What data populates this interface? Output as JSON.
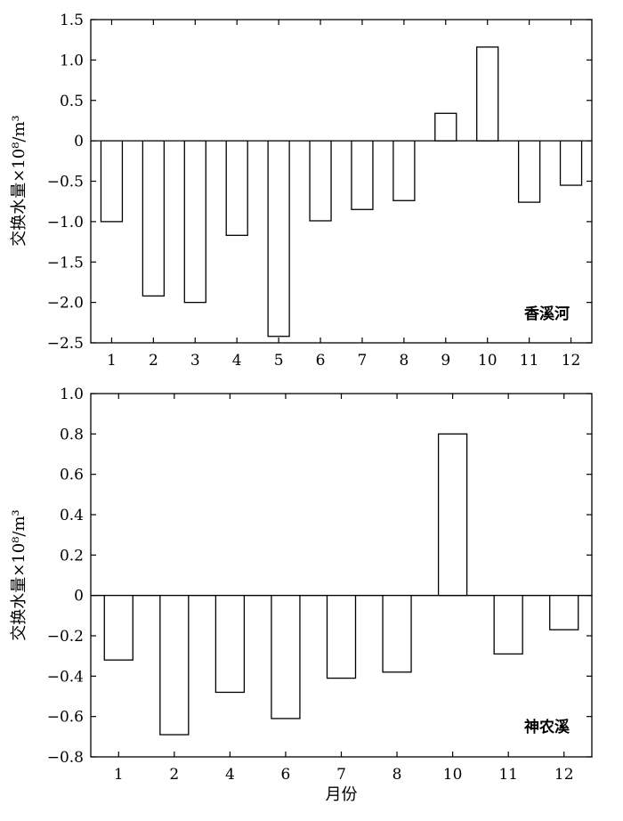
{
  "chart_data": [
    {
      "type": "bar",
      "annotation": "香溪河",
      "ylabel": "交换水量×10⁸/m³",
      "xlabel": "",
      "categories": [
        "1",
        "2",
        "3",
        "4",
        "5",
        "6",
        "7",
        "8",
        "9",
        "10",
        "11",
        "12"
      ],
      "values": [
        -1.0,
        -1.92,
        -2.0,
        -1.17,
        -2.42,
        -0.99,
        -0.85,
        -0.74,
        0.34,
        1.16,
        -0.76,
        -0.55
      ],
      "ylim": [
        -2.5,
        1.5
      ],
      "yticks": [
        1.5,
        1.0,
        0.5,
        0,
        -0.5,
        -1.0,
        -1.5,
        -2.0,
        -2.5
      ],
      "ytick_labels": [
        "1.5",
        "1.0",
        "0.5",
        "0",
        "−0.5",
        "−1.0",
        "−1.5",
        "−2.0",
        "−2.5"
      ],
      "grid": false
    },
    {
      "type": "bar",
      "annotation": "神农溪",
      "ylabel": "交换水量×10⁸/m³",
      "xlabel": "月份",
      "categories": [
        "1",
        "2",
        "4",
        "6",
        "7",
        "8",
        "10",
        "11",
        "12"
      ],
      "values": [
        -0.32,
        -0.69,
        -0.48,
        -0.61,
        -0.41,
        -0.38,
        0.8,
        -0.29,
        -0.17
      ],
      "ylim": [
        -0.8,
        1.0
      ],
      "yticks": [
        1.0,
        0.8,
        0.6,
        0.4,
        0.2,
        0,
        -0.2,
        -0.4,
        -0.6,
        -0.8
      ],
      "ytick_labels": [
        "1.0",
        "0.8",
        "0.6",
        "0.4",
        "0.2",
        "0",
        "−0.2",
        "−0.4",
        "−0.6",
        "−0.8"
      ],
      "grid": false
    }
  ]
}
